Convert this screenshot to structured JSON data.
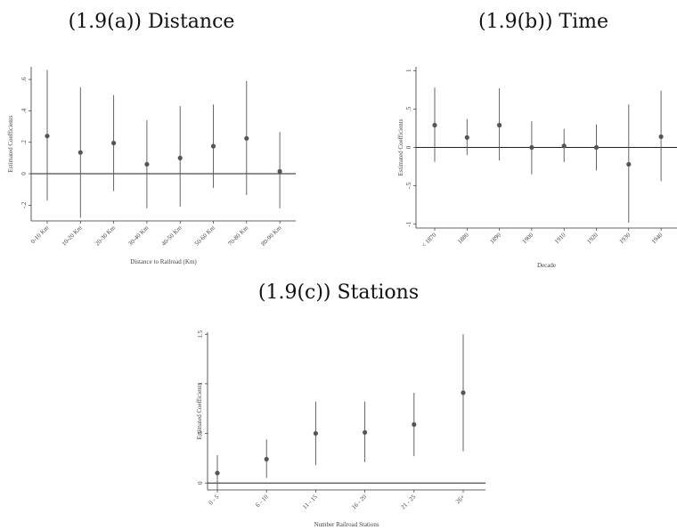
{
  "chart_data": [
    {
      "id": "a",
      "type": "scatter",
      "panel_title": "(1.9(a)) Distance",
      "xlabel": "Distance to Railroad (Km)",
      "ylabel": "Estimated Coefficients",
      "categories": [
        "0-10 Km",
        "10-20 Km",
        "20-30 Km",
        "30-40 Km",
        "40-50 Km",
        "50-60 Km",
        "70-80 Km",
        "80-90 Km"
      ],
      "yticks": [
        -0.2,
        0,
        0.2,
        0.4,
        0.6
      ],
      "ytick_labels": [
        "-.2",
        "0",
        ".2",
        ".4",
        ".6"
      ],
      "ylim": [
        -0.3,
        0.68
      ],
      "points": [
        {
          "est": 0.24,
          "lo": -0.17,
          "hi": 0.66
        },
        {
          "est": 0.135,
          "lo": -0.28,
          "hi": 0.55
        },
        {
          "est": 0.195,
          "lo": -0.11,
          "hi": 0.5
        },
        {
          "est": 0.06,
          "lo": -0.22,
          "hi": 0.34
        },
        {
          "est": 0.1,
          "lo": -0.21,
          "hi": 0.43
        },
        {
          "est": 0.175,
          "lo": -0.09,
          "hi": 0.44
        },
        {
          "est": 0.225,
          "lo": -0.135,
          "hi": 0.59
        },
        {
          "est": 0.015,
          "lo": -0.22,
          "hi": 0.265
        }
      ]
    },
    {
      "id": "b",
      "type": "scatter",
      "panel_title": "(1.9(b)) Time",
      "xlabel": "Decade",
      "ylabel": "Estimated Coefficients",
      "categories": [
        "< 1870",
        "1880",
        "1890",
        "1900",
        "1910",
        "1920",
        "1930",
        "1940"
      ],
      "yticks": [
        -1,
        -0.5,
        0,
        0.5,
        1
      ],
      "ytick_labels": [
        "-1",
        "-.5",
        "0",
        ".5",
        "1"
      ],
      "ylim": [
        -1.05,
        1.05
      ],
      "points": [
        {
          "est": 0.29,
          "lo": -0.19,
          "hi": 0.78
        },
        {
          "est": 0.13,
          "lo": -0.1,
          "hi": 0.37
        },
        {
          "est": 0.29,
          "lo": -0.17,
          "hi": 0.77
        },
        {
          "est": 0.0,
          "lo": -0.35,
          "hi": 0.34
        },
        {
          "est": 0.02,
          "lo": -0.19,
          "hi": 0.24
        },
        {
          "est": 0.0,
          "lo": -0.3,
          "hi": 0.3
        },
        {
          "est": -0.22,
          "lo": -0.98,
          "hi": 0.56
        },
        {
          "est": 0.14,
          "lo": -0.44,
          "hi": 0.74
        }
      ]
    },
    {
      "id": "c",
      "type": "scatter",
      "panel_title": "(1.9(c)) Stations",
      "xlabel": "Number Railroad Stations",
      "ylabel": "Estimated Coefficients",
      "categories": [
        "0 - 5",
        "6 - 10",
        "11 - 15",
        "16 - 20",
        "21 - 25",
        "26+"
      ],
      "yticks": [
        0,
        0.5,
        1,
        1.5
      ],
      "ytick_labels": [
        "0",
        ".5",
        "1",
        "1.5"
      ],
      "ylim": [
        -0.07,
        1.52
      ],
      "points": [
        {
          "est": 0.1,
          "lo": -0.07,
          "hi": 0.28
        },
        {
          "est": 0.24,
          "lo": 0.05,
          "hi": 0.44
        },
        {
          "est": 0.5,
          "lo": 0.18,
          "hi": 0.82
        },
        {
          "est": 0.51,
          "lo": 0.21,
          "hi": 0.82
        },
        {
          "est": 0.59,
          "lo": 0.27,
          "hi": 0.91
        },
        {
          "est": 0.91,
          "lo": 0.32,
          "hi": 1.5
        }
      ]
    }
  ]
}
